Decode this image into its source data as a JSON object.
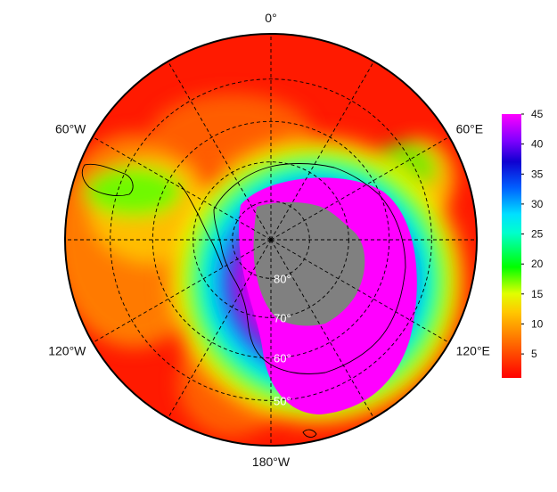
{
  "map": {
    "projection": "south-polar-stereographic",
    "longitude_labels": [
      {
        "label": "0°",
        "lon": 0
      },
      {
        "label": "60°E",
        "lon": 60
      },
      {
        "label": "120°E",
        "lon": 120
      },
      {
        "label": "180°W",
        "lon": 180
      },
      {
        "label": "120°W",
        "lon": -120
      },
      {
        "label": "60°W",
        "lon": -60
      }
    ],
    "latitude_labels": [
      "80°",
      "70°",
      "60°",
      "50°"
    ],
    "latitude_circles": [
      80,
      70,
      60,
      50
    ],
    "meridians": [
      0,
      30,
      60,
      90,
      120,
      150,
      180,
      210,
      240,
      270,
      300,
      330
    ],
    "missing_data_color": "#808080"
  },
  "colorbar": {
    "min": 1,
    "max": 45,
    "ticks": [
      5,
      10,
      15,
      20,
      25,
      30,
      35,
      40,
      45
    ],
    "colors": [
      "#ff0000",
      "#ff8000",
      "#ffff00",
      "#00ff00",
      "#00ffff",
      "#0080ff",
      "#0000cc",
      "#8000ff",
      "#ff00ff"
    ]
  }
}
